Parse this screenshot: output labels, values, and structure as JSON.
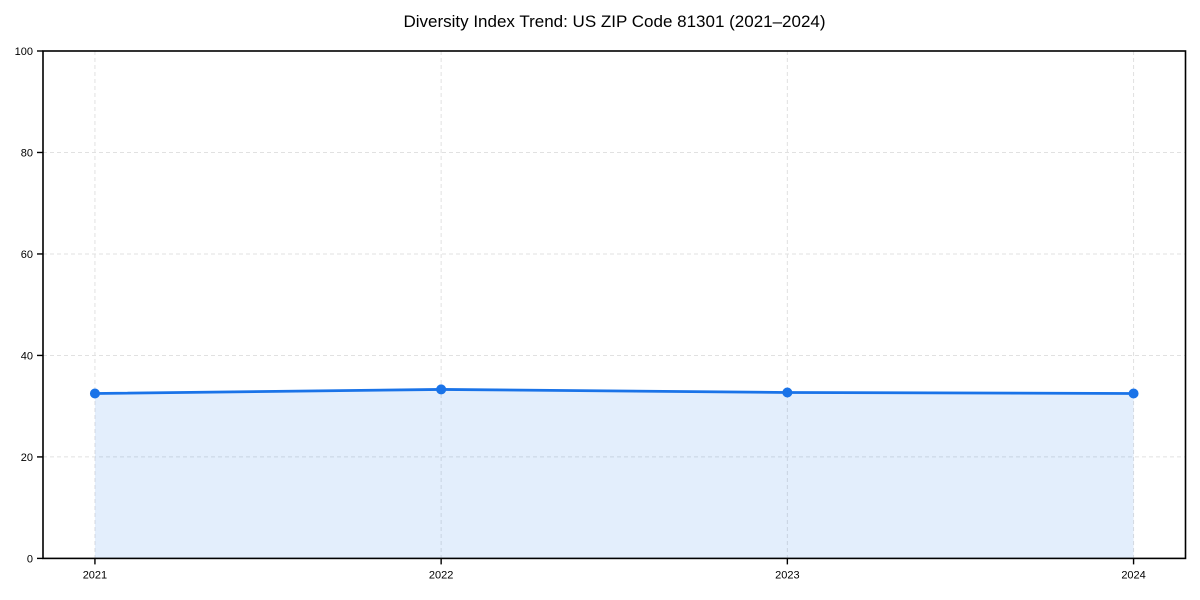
{
  "chart_data": {
    "type": "area",
    "title": "Diversity Index Trend: US ZIP Code 81301 (2021–2024)",
    "x": [
      2021,
      2022,
      2023,
      2024
    ],
    "x_tick_labels": [
      "2021",
      "2022",
      "2023",
      "2024"
    ],
    "series": [
      {
        "name": "Diversity Index",
        "values": [
          32.5,
          33.3,
          32.7,
          32.5
        ]
      }
    ],
    "xlabel": "",
    "ylabel": "",
    "xlim": [
      2020.85,
      2024.15
    ],
    "ylim": [
      0,
      100
    ],
    "yticks": [
      0,
      20,
      40,
      60,
      80,
      100
    ],
    "grid": "dashed-both",
    "legend": "none",
    "colors": {
      "line": "#1a73e8",
      "marker": "#1a73e8",
      "fill": "rgba(26,115,232,0.12)",
      "grid": "#e1e1e1",
      "axis": "#000000",
      "text": "#000000",
      "background": "#ffffff"
    },
    "style": {
      "line_width": 2.8,
      "marker_radius": 5,
      "tick_font_size": 11,
      "title_font_size": 17
    }
  }
}
